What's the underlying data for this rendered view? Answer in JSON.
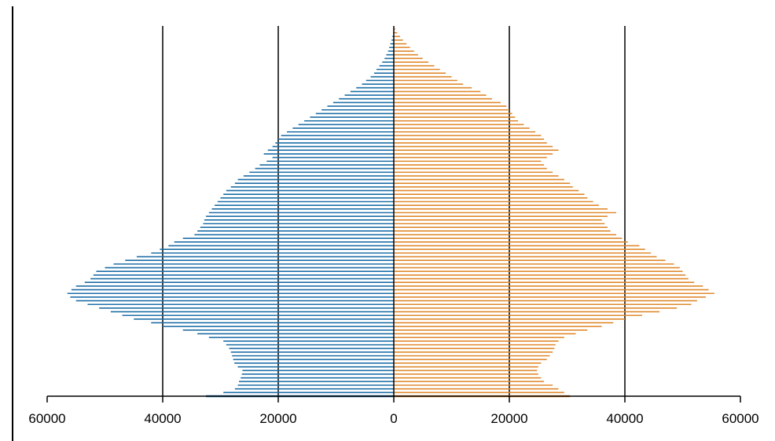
{
  "chart_data": {
    "type": "bar",
    "orientation": "horizontal",
    "layout": "population-pyramid",
    "xlim": [
      -60000,
      60000
    ],
    "x_tick_values": [
      -60000,
      -40000,
      -20000,
      0,
      20000,
      40000,
      60000
    ],
    "x_tick_labels": [
      "60000",
      "40000",
      "20000",
      "0",
      "20000",
      "40000",
      "60000"
    ],
    "vertical_gridlines_at": [
      -40000,
      -20000,
      20000,
      40000
    ],
    "legend": "none",
    "categories_count": 101,
    "series": [
      {
        "side": "left",
        "color": "#1e6fa8",
        "values": [
          32500,
          29500,
          27500,
          27000,
          26800,
          26500,
          26300,
          26200,
          27000,
          27600,
          27800,
          28000,
          28200,
          28500,
          29000,
          29500,
          32000,
          34000,
          36500,
          40000,
          42000,
          45000,
          47000,
          49000,
          51000,
          53000,
          55000,
          56000,
          56500,
          55800,
          55000,
          53500,
          52500,
          52000,
          51500,
          50000,
          48500,
          46500,
          44500,
          42000,
          40500,
          39000,
          38000,
          36500,
          34500,
          34000,
          33500,
          33000,
          32800,
          32500,
          32000,
          31500,
          31000,
          30500,
          30000,
          29500,
          29000,
          28200,
          27500,
          27000,
          26000,
          25000,
          24000,
          23200,
          22000,
          21000,
          22500,
          21800,
          21000,
          20500,
          20000,
          19500,
          18500,
          17500,
          16500,
          15500,
          14500,
          13500,
          12500,
          11500,
          10500,
          9500,
          8500,
          7500,
          6500,
          5500,
          4800,
          4000,
          3400,
          3000,
          2500,
          2000,
          1600,
          1300,
          1000,
          800,
          600,
          400,
          250,
          120,
          50
        ]
      },
      {
        "side": "right",
        "color": "#e08a2e",
        "values": [
          30500,
          29500,
          28500,
          27500,
          26000,
          25500,
          25000,
          24800,
          25000,
          25500,
          26500,
          27000,
          27500,
          27800,
          28000,
          28500,
          29500,
          31500,
          33500,
          36000,
          38000,
          40000,
          43000,
          46000,
          49000,
          51500,
          52500,
          54000,
          55500,
          54500,
          53500,
          52000,
          51000,
          50500,
          50000,
          49500,
          48500,
          47000,
          45500,
          44500,
          43500,
          42500,
          40500,
          39500,
          38500,
          37500,
          37000,
          36500,
          36000,
          37000,
          38500,
          37000,
          35500,
          34500,
          33500,
          33000,
          32000,
          31000,
          30500,
          29500,
          28500,
          27500,
          26500,
          26000,
          25500,
          26500,
          27500,
          28500,
          27500,
          26500,
          26000,
          25500,
          24500,
          23500,
          22500,
          21500,
          21000,
          20500,
          20000,
          19500,
          18500,
          17000,
          16000,
          15000,
          13500,
          12000,
          11000,
          10000,
          9000,
          8000,
          7000,
          6000,
          5000,
          4200,
          3500,
          2800,
          2200,
          1600,
          1100,
          600,
          250
        ]
      }
    ]
  }
}
